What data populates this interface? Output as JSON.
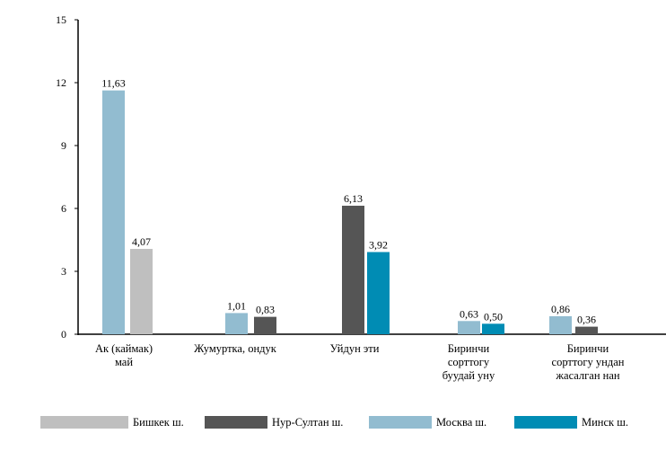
{
  "chart_data": {
    "type": "bar",
    "title": "",
    "xlabel": "",
    "ylabel": "",
    "ylim": [
      0,
      15
    ],
    "yticks": [
      "0",
      "3",
      "6",
      "9",
      "12",
      "15"
    ],
    "grid": false,
    "legend_position": "bottom",
    "categories": [
      [
        "Ак (каймак)",
        "май"
      ],
      [
        "Жумуртка,  ондук"
      ],
      [
        "Уйдун эти"
      ],
      [
        "Биринчи",
        "сорттогу",
        "буудай уну"
      ],
      [
        "Биринчи",
        "сорттогу ундан",
        "жасалган нан"
      ]
    ],
    "series": [
      {
        "name": "Бишкек ш.",
        "color": "#bfbfbf"
      },
      {
        "name": "Нур-Султан ш.",
        "color": "#555555"
      },
      {
        "name": "Москва ш.",
        "color": "#92bcd0"
      },
      {
        "name": "Минск ш.",
        "color": "#008cb4"
      }
    ],
    "bars": [
      {
        "category": 0,
        "series": 2,
        "value": 11.63,
        "label": "11,63"
      },
      {
        "category": 0,
        "series": 0,
        "value": 4.07,
        "label": "4,07"
      },
      {
        "category": 1,
        "series": 2,
        "value": 1.01,
        "label": "1,01"
      },
      {
        "category": 1,
        "series": 1,
        "value": 0.83,
        "label": "0,83"
      },
      {
        "category": 2,
        "series": 1,
        "value": 6.13,
        "label": "6,13"
      },
      {
        "category": 2,
        "series": 3,
        "value": 3.92,
        "label": "3,92"
      },
      {
        "category": 3,
        "series": 2,
        "value": 0.63,
        "label": "0,63"
      },
      {
        "category": 3,
        "series": 3,
        "value": 0.5,
        "label": "0,50"
      },
      {
        "category": 4,
        "series": 2,
        "value": 0.86,
        "label": "0,86"
      },
      {
        "category": 4,
        "series": 1,
        "value": 0.36,
        "label": "0,36"
      }
    ]
  }
}
